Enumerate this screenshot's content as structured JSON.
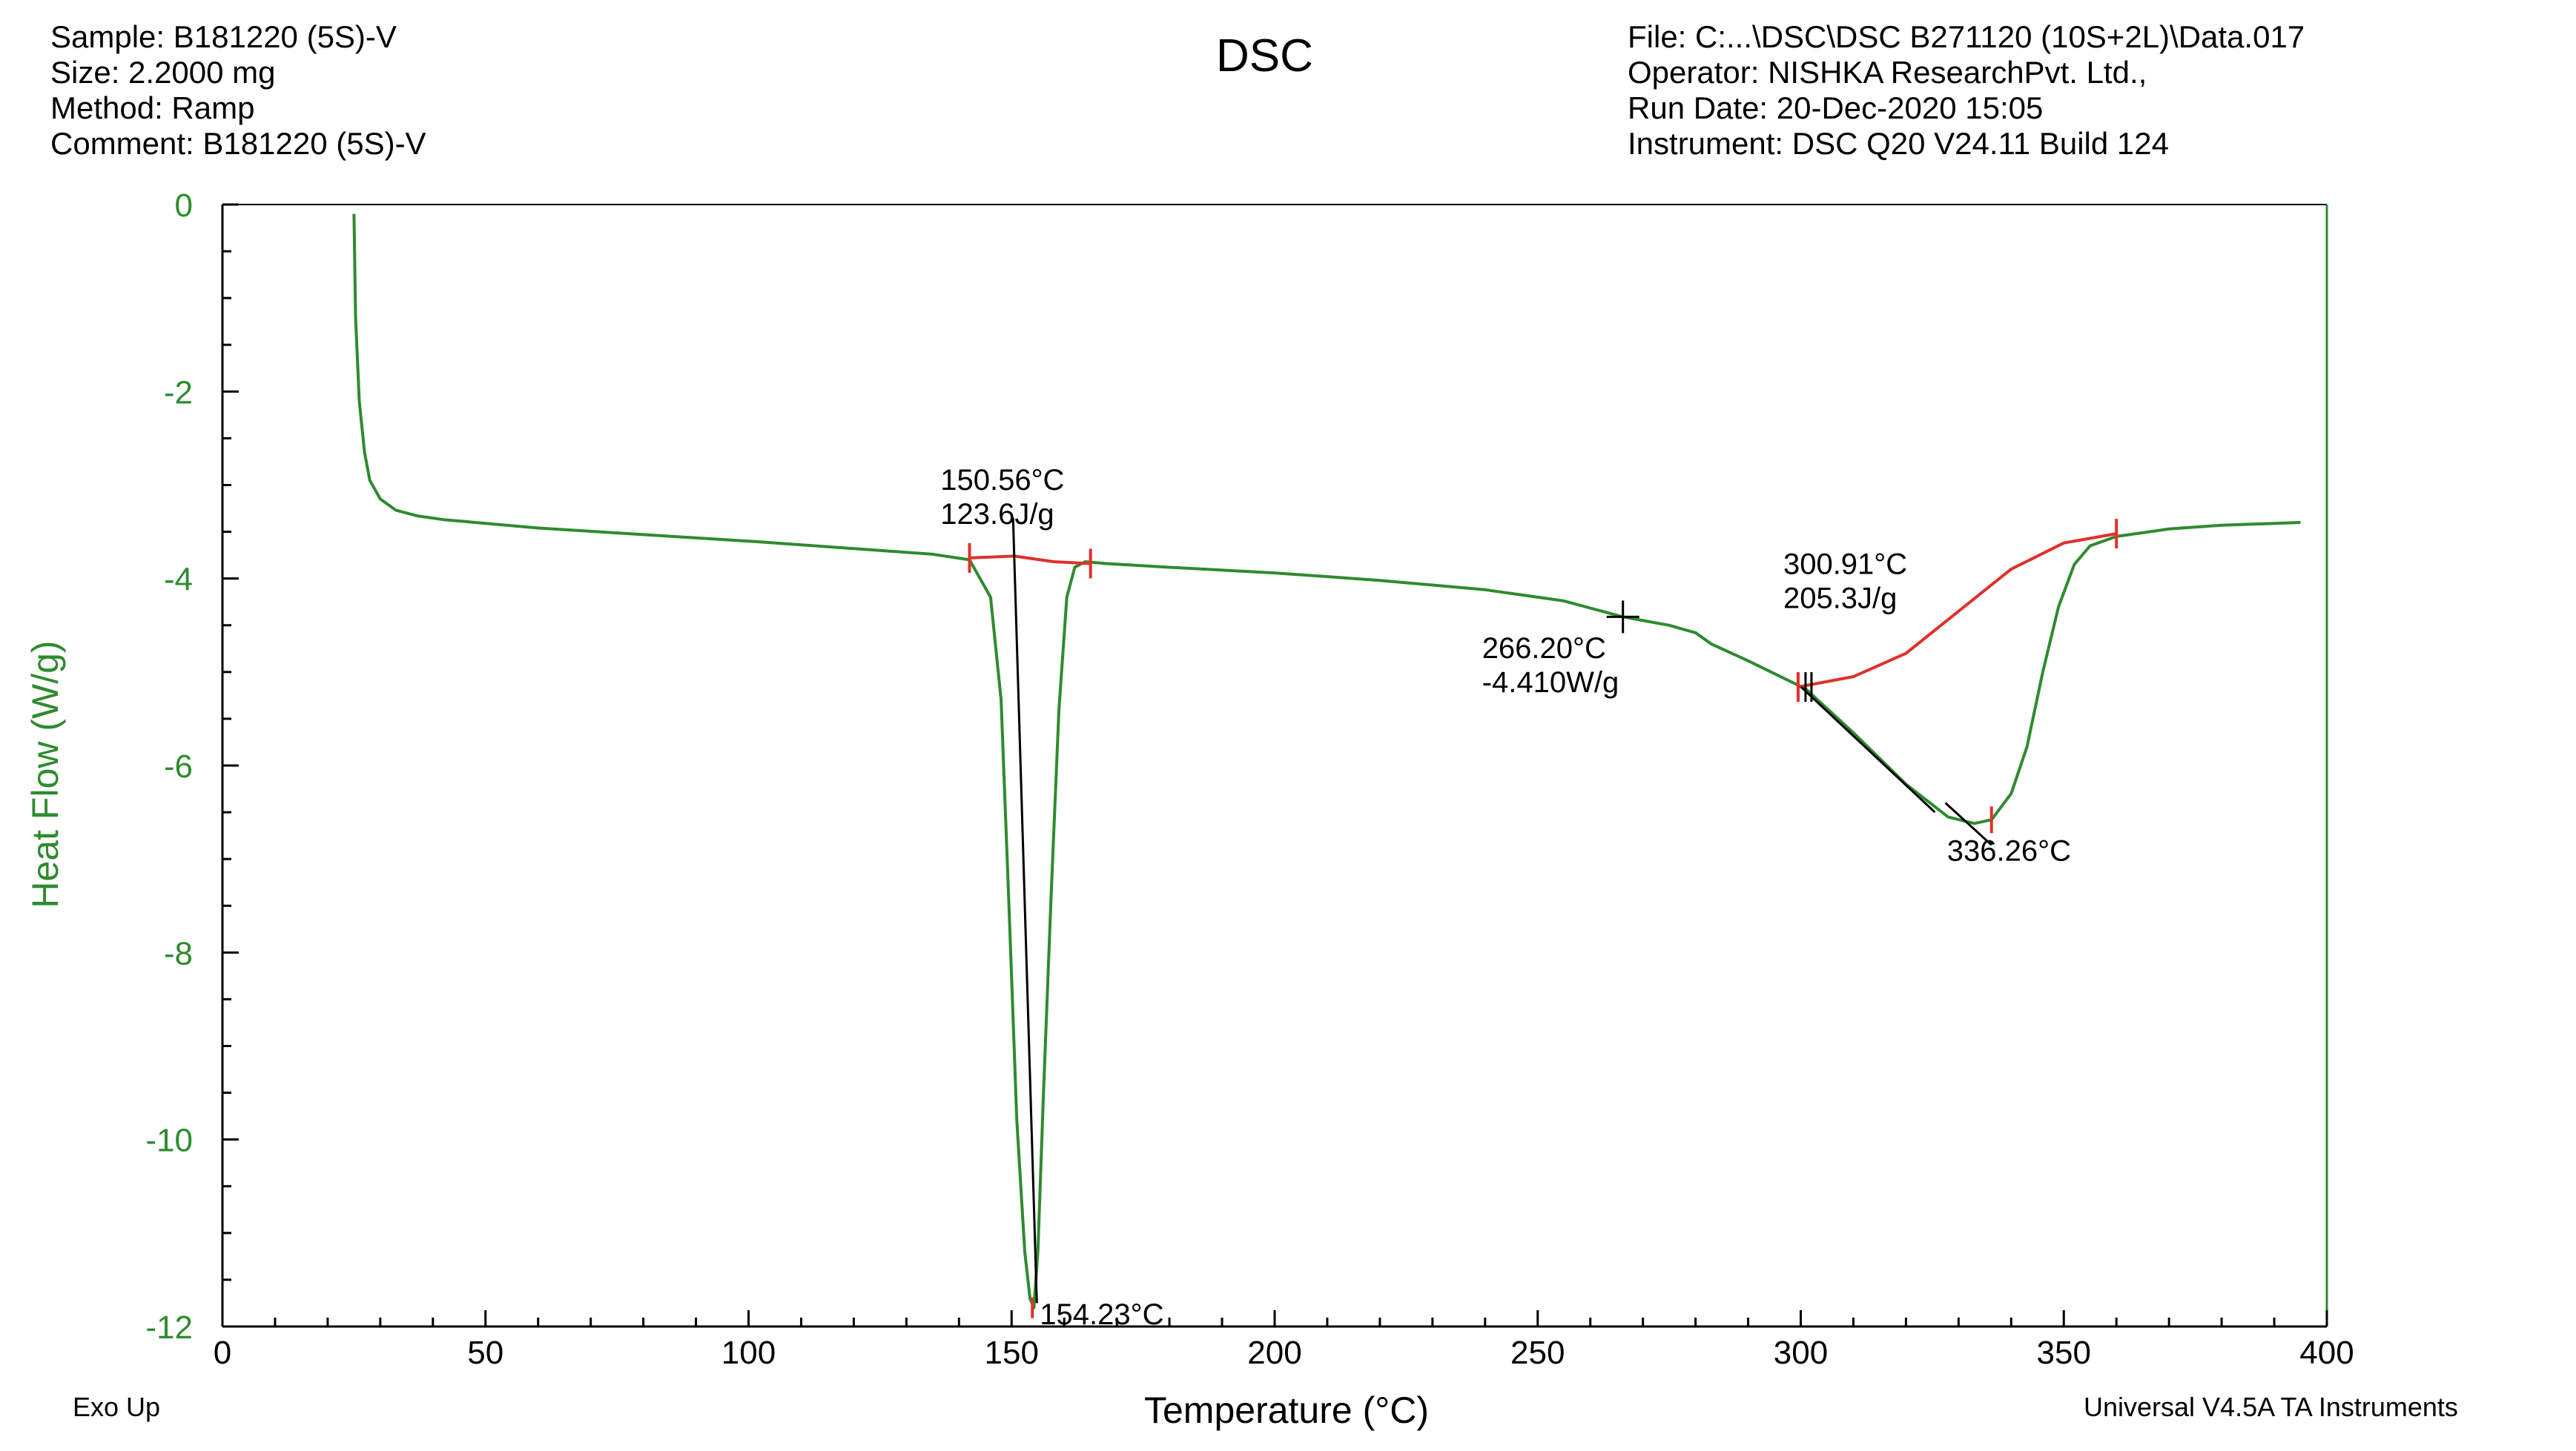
{
  "header": {
    "left": [
      "Sample: B181220 (5S)-V",
      "Size:  2.2000 mg",
      "Method: Ramp",
      "Comment: B181220 (5S)-V"
    ],
    "title": "DSC",
    "right": [
      "File: C:...\\DSC\\DSC B271120 (10S+2L)\\Data.017",
      "Operator: NISHKA ResearchPvt. Ltd.,",
      "Run Date: 20-Dec-2020 15:05",
      "Instrument: DSC Q20 V24.11 Build 124"
    ]
  },
  "footer": {
    "left": "Exo Up",
    "right": "Universal V4.5A TA Instruments"
  },
  "colors": {
    "curve": "#2e8b2e",
    "baseline": "#e0302a",
    "axis": "#2e8b2e",
    "annotation": "#000000"
  },
  "chart_data": {
    "type": "line",
    "title": "DSC",
    "xlabel": "Temperature (°C)",
    "ylabel": "Heat Flow (W/g)",
    "xlim": [
      0,
      400
    ],
    "ylim": [
      -12,
      0
    ],
    "xticks": [
      0,
      50,
      100,
      150,
      200,
      250,
      300,
      350,
      400
    ],
    "yticks": [
      0,
      -2,
      -4,
      -6,
      -8,
      -10,
      -12
    ],
    "grid": false,
    "series": [
      {
        "x": [
          25,
          25.3,
          26,
          27,
          28,
          30,
          33,
          37,
          42,
          50,
          60,
          80,
          100,
          120,
          135,
          142,
          146,
          148,
          149.5,
          151,
          152.5,
          153.5,
          154.23,
          155,
          156,
          157.5,
          159,
          160.5,
          162,
          164,
          168,
          180,
          200,
          220,
          240,
          255,
          266.2,
          275,
          280,
          283,
          290,
          300.91,
          310,
          320,
          328,
          333,
          336.26,
          340,
          343,
          346,
          349,
          352,
          355,
          360,
          370,
          380,
          395
        ],
        "y": [
          -0.1,
          -1.2,
          -2.1,
          -2.65,
          -2.95,
          -3.15,
          -3.27,
          -3.33,
          -3.37,
          -3.41,
          -3.46,
          -3.53,
          -3.6,
          -3.68,
          -3.74,
          -3.8,
          -4.2,
          -5.3,
          -7.5,
          -9.8,
          -11.2,
          -11.7,
          -11.8,
          -11.2,
          -9.6,
          -7.4,
          -5.4,
          -4.2,
          -3.88,
          -3.82,
          -3.84,
          -3.88,
          -3.94,
          -4.02,
          -4.12,
          -4.24,
          -4.41,
          -4.5,
          -4.58,
          -4.7,
          -4.88,
          -5.18,
          -5.65,
          -6.2,
          -6.55,
          -6.62,
          -6.58,
          -6.3,
          -5.8,
          -5.0,
          -4.3,
          -3.85,
          -3.65,
          -3.55,
          -3.47,
          -3.43,
          -3.4
        ]
      }
    ],
    "baselines": [
      {
        "x": [
          142,
          150.56,
          158,
          165
        ],
        "y": [
          -3.78,
          -3.76,
          -3.82,
          -3.84
        ]
      },
      {
        "x": [
          299.5,
          310,
          320,
          330,
          340,
          350,
          360
        ],
        "y": [
          -5.16,
          -5.05,
          -4.8,
          -4.35,
          -3.9,
          -3.62,
          -3.52
        ]
      }
    ],
    "annotations": [
      {
        "lines": [
          "150.56°C",
          "123.6J/g"
        ],
        "x": 150.56,
        "y": -3.76,
        "kind": "onset"
      },
      {
        "lines": [
          "154.23°C"
        ],
        "x": 154.23,
        "y": -11.8,
        "kind": "peak"
      },
      {
        "lines": [
          "266.20°C",
          "-4.410W/g"
        ],
        "x": 266.2,
        "y": -4.41,
        "kind": "point"
      },
      {
        "lines": [
          "300.91°C",
          "205.3J/g"
        ],
        "x": 300.91,
        "y": -5.16,
        "kind": "onset"
      },
      {
        "lines": [
          "336.26°C"
        ],
        "x": 336.26,
        "y": -6.58,
        "kind": "peak"
      }
    ]
  }
}
